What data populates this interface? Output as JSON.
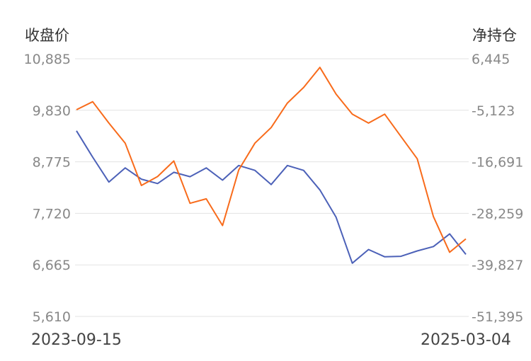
{
  "chart_data": {
    "type": "line",
    "y_left_title": "收盘价",
    "y_right_title": "净持仓",
    "x_start_label": "2023-09-15",
    "x_end_label": "2025-03-04",
    "y_left_ticks": [
      "10,885",
      "9,830",
      "8,775",
      "7,720",
      "6,665",
      "5,610"
    ],
    "y_right_ticks": [
      "6,445",
      "-5,123",
      "-16,691",
      "-28,259",
      "-39,827",
      "-51,395"
    ],
    "y_left_range": [
      5610,
      10885
    ],
    "y_right_range": [
      -51395,
      6445
    ],
    "grid": "horizontal",
    "x": [
      "2023-09-15",
      "2023-10-09",
      "2023-10-31",
      "2023-11-22",
      "2023-12-14",
      "2024-01-09",
      "2024-01-31",
      "2024-02-22",
      "2024-03-15",
      "2024-04-09",
      "2024-05-01",
      "2024-05-23",
      "2024-06-14",
      "2024-07-08",
      "2024-07-30",
      "2024-08-21",
      "2024-09-12",
      "2024-10-04",
      "2024-10-28",
      "2024-11-19",
      "2024-12-11",
      "2025-01-06",
      "2025-01-28",
      "2025-02-19",
      "2025-03-04"
    ],
    "series": [
      {
        "name": "收盘价",
        "axis": "left",
        "color": "#4c61b8",
        "values": [
          9410,
          8870,
          8360,
          8650,
          8420,
          8330,
          8560,
          8470,
          8650,
          8400,
          8700,
          8600,
          8310,
          8700,
          8600,
          8200,
          7640,
          6700,
          6980,
          6830,
          6840,
          6950,
          7040,
          7300,
          6880
        ]
      },
      {
        "name": "净持仓",
        "axis": "right",
        "color": "#f86b1b",
        "values": [
          -5000,
          -3200,
          -8000,
          -12500,
          -22000,
          -20000,
          -16500,
          -26000,
          -25000,
          -31000,
          -18500,
          -12500,
          -9000,
          -3500,
          0,
          4500,
          -1500,
          -6000,
          -8000,
          -6000,
          -11000,
          -16000,
          -29000,
          -37000,
          -34000
        ]
      }
    ]
  }
}
